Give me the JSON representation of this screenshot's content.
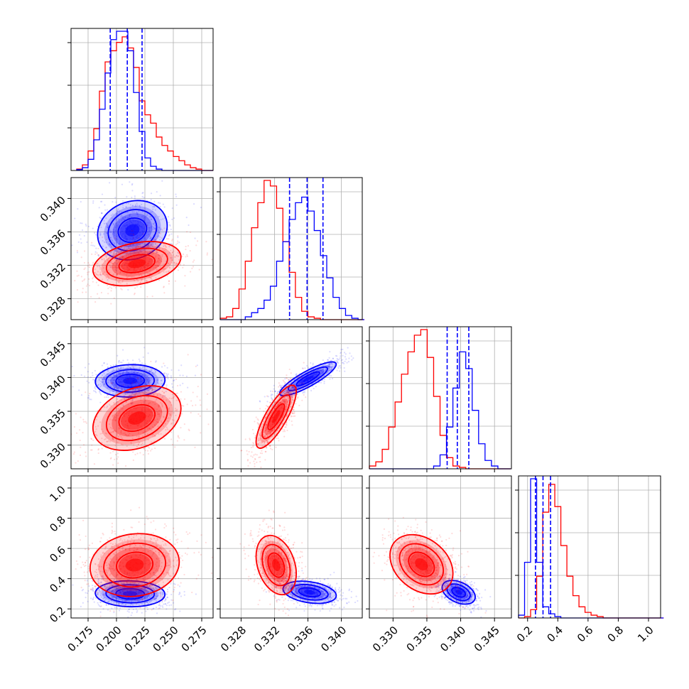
{
  "chart_data": {
    "type": "corner",
    "colors": {
      "a": "#0000ff",
      "b": "#ff0000",
      "grid": "#b0b0b0",
      "frame": "#000000",
      "quantile": "#0000ff"
    },
    "params": [
      {
        "range": [
          0.16,
          0.285
        ],
        "ticks": [
          0.175,
          0.2,
          0.225,
          0.25,
          0.275
        ],
        "tick_labels": [
          "0.175",
          "0.200",
          "0.225",
          "0.250",
          "0.275"
        ],
        "quantiles": [
          0.1945,
          0.2095,
          0.2225
        ],
        "hist": {
          "bin_min": 0.165,
          "bin_width": 0.005,
          "a": [
            0.6,
            2,
            8,
            22,
            44,
            70,
            94,
            100,
            100,
            86,
            56,
            28,
            9,
            3,
            1,
            0,
            0,
            0,
            0,
            0,
            0,
            0,
            0,
            0
          ],
          "b": [
            1,
            4,
            14,
            30,
            57,
            78,
            86,
            92,
            96,
            88,
            74,
            50,
            40,
            34,
            24,
            18,
            14,
            10,
            7,
            4,
            2,
            1,
            0,
            0
          ]
        }
      },
      {
        "range": [
          0.3255,
          0.3425
        ],
        "ticks": [
          0.328,
          0.332,
          0.336,
          0.34
        ],
        "tick_labels": [
          "0.328",
          "0.332",
          "0.336",
          "0.340"
        ],
        "quantiles": [
          0.3338,
          0.3359,
          0.3378
        ],
        "hist": {
          "bin_min": 0.3255,
          "bin_width": 0.00075,
          "a": [
            0,
            0,
            0,
            0,
            2,
            5,
            8,
            14,
            24,
            42,
            56,
            72,
            84,
            88,
            78,
            64,
            46,
            30,
            16,
            8,
            3,
            1,
            0
          ],
          "b": [
            1,
            2,
            8,
            22,
            42,
            66,
            84,
            100,
            96,
            80,
            56,
            34,
            16,
            6,
            2,
            1,
            0,
            0,
            0,
            0,
            0,
            0,
            0
          ]
        }
      },
      {
        "range": [
          0.3265,
          0.3475
        ],
        "ticks": [
          0.33,
          0.335,
          0.34,
          0.345
        ],
        "tick_labels": [
          "0.330",
          "0.335",
          "0.340",
          "0.345"
        ],
        "quantiles": [
          0.338,
          0.3395,
          0.3412
        ],
        "hist": {
          "bin_min": 0.3265,
          "bin_width": 0.00095,
          "a": [
            0,
            0,
            0,
            0,
            0,
            0,
            0,
            0,
            0,
            0,
            2,
            10,
            30,
            58,
            84,
            72,
            42,
            18,
            6,
            2,
            0,
            0
          ],
          "b": [
            2,
            5,
            14,
            30,
            48,
            68,
            84,
            96,
            100,
            80,
            52,
            24,
            8,
            2,
            1,
            0,
            0,
            0,
            0,
            0,
            0,
            0
          ]
        }
      },
      {
        "range": [
          0.14,
          1.08
        ],
        "ticks": [
          0.2,
          0.4,
          0.6,
          0.8,
          1.0
        ],
        "tick_labels": [
          "0.2",
          "0.4",
          "0.6",
          "0.8",
          "1.0"
        ],
        "quantiles": [
          0.252,
          0.302,
          0.352
        ],
        "hist": {
          "bin_min": 0.14,
          "bin_width": 0.04,
          "a": [
            2,
            40,
            100,
            40,
            8,
            3,
            1,
            0,
            0,
            0,
            0,
            0,
            0,
            0,
            0,
            0,
            0,
            0,
            0,
            0,
            0,
            0,
            0,
            0
          ],
          "b": [
            0,
            1,
            6,
            30,
            76,
            96,
            80,
            52,
            30,
            16,
            8,
            4,
            2,
            1,
            0,
            0,
            0,
            0,
            0,
            0,
            0,
            0,
            0,
            0
          ]
        }
      }
    ],
    "pairs": [
      {
        "x": 0,
        "y": 1,
        "a": {
          "mean": [
            0.214,
            0.3362
          ],
          "sd": [
            0.0125,
            0.00145
          ],
          "rho": 0.15
        },
        "b": {
          "mean": [
            0.218,
            0.3322
          ],
          "sd": [
            0.0158,
            0.00108
          ],
          "rho": 0.3
        }
      },
      {
        "x": 0,
        "y": 2,
        "a": {
          "mean": [
            0.212,
            0.3395
          ],
          "sd": [
            0.0125,
            0.00098
          ],
          "rho": 0.05
        },
        "b": {
          "mean": [
            0.218,
            0.334
          ],
          "sd": [
            0.0158,
            0.00195
          ],
          "rho": 0.3
        }
      },
      {
        "x": 1,
        "y": 2,
        "a": {
          "mean": [
            0.336,
            0.3398
          ],
          "sd": [
            0.00138,
            0.00102
          ],
          "rho": 0.86
        },
        "b": {
          "mean": [
            0.3322,
            0.3342
          ],
          "sd": [
            0.00098,
            0.0019
          ],
          "rho": 0.8
        }
      },
      {
        "x": 0,
        "y": 3,
        "a": {
          "mean": [
            0.212,
            0.3
          ],
          "sd": [
            0.0125,
            0.035
          ],
          "rho": -0.05
        },
        "b": {
          "mean": [
            0.216,
            0.49
          ],
          "sd": [
            0.016,
            0.085
          ],
          "rho": 0.1
        }
      },
      {
        "x": 1,
        "y": 3,
        "a": {
          "mean": [
            0.3362,
            0.31
          ],
          "sd": [
            0.0013,
            0.03
          ],
          "rho": -0.3
        },
        "b": {
          "mean": [
            0.3322,
            0.49
          ],
          "sd": [
            0.00098,
            0.08
          ],
          "rho": -0.3
        }
      },
      {
        "x": 2,
        "y": 3,
        "a": {
          "mean": [
            0.3397,
            0.31
          ],
          "sd": [
            0.001,
            0.032
          ],
          "rho": -0.4
        },
        "b": {
          "mean": [
            0.3342,
            0.495
          ],
          "sd": [
            0.0019,
            0.08
          ],
          "rho": -0.3
        }
      }
    ]
  }
}
